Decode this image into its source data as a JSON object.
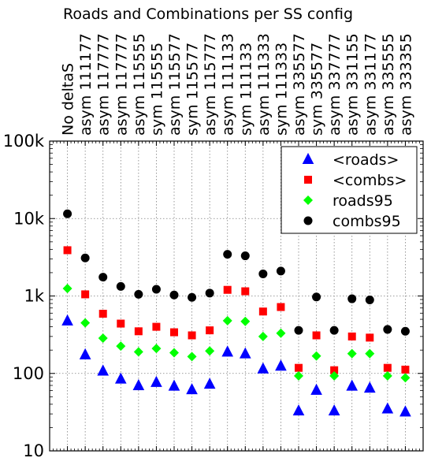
{
  "chart_data": {
    "type": "scatter",
    "title": "Roads and Combinations per SS config",
    "categories": [
      "No deltaS",
      "asym 111177",
      "asym 117777",
      "asym 117777",
      "asym 115555",
      "sym 115555",
      "asym 115577",
      "sym 115577",
      "asym 115777",
      "asym 111133",
      "sym 111133",
      "asym 111333",
      "sym 111333",
      "asym 335577",
      "sym 335577",
      "asym 337777",
      "asym 331155",
      "asym 331177",
      "asym 335555",
      "asym 333355"
    ],
    "y_scale": "log",
    "ylim": [
      10,
      100000
    ],
    "y_ticks": [
      10,
      100,
      1000,
      10000,
      100000
    ],
    "y_tick_labels": [
      "10",
      "100",
      "1k",
      "10k",
      "100k"
    ],
    "grid": true,
    "legend_position": "top-right",
    "series": [
      {
        "name": "<roads>",
        "color": "#0000ff",
        "marker": "triangle",
        "values": [
          480,
          175,
          108,
          85,
          70,
          77,
          69,
          62,
          73,
          190,
          180,
          115,
          125,
          33,
          61,
          33,
          69,
          65,
          35,
          32
        ]
      },
      {
        "name": "<combs>",
        "color": "#ff0000",
        "marker": "square",
        "values": [
          3900,
          1050,
          590,
          440,
          350,
          400,
          340,
          310,
          360,
          1200,
          1150,
          630,
          720,
          118,
          310,
          110,
          300,
          290,
          118,
          112
        ]
      },
      {
        "name": "roads95",
        "color": "#00ff00",
        "marker": "diamond",
        "values": [
          1250,
          450,
          285,
          225,
          190,
          210,
          185,
          165,
          195,
          480,
          470,
          300,
          330,
          93,
          168,
          93,
          180,
          180,
          93,
          88
        ]
      },
      {
        "name": "combs95",
        "color": "#000000",
        "marker": "circle",
        "values": [
          11500,
          3100,
          1750,
          1330,
          1050,
          1220,
          1030,
          960,
          1090,
          3450,
          3300,
          1930,
          2100,
          360,
          970,
          360,
          920,
          890,
          370,
          350
        ]
      }
    ]
  }
}
